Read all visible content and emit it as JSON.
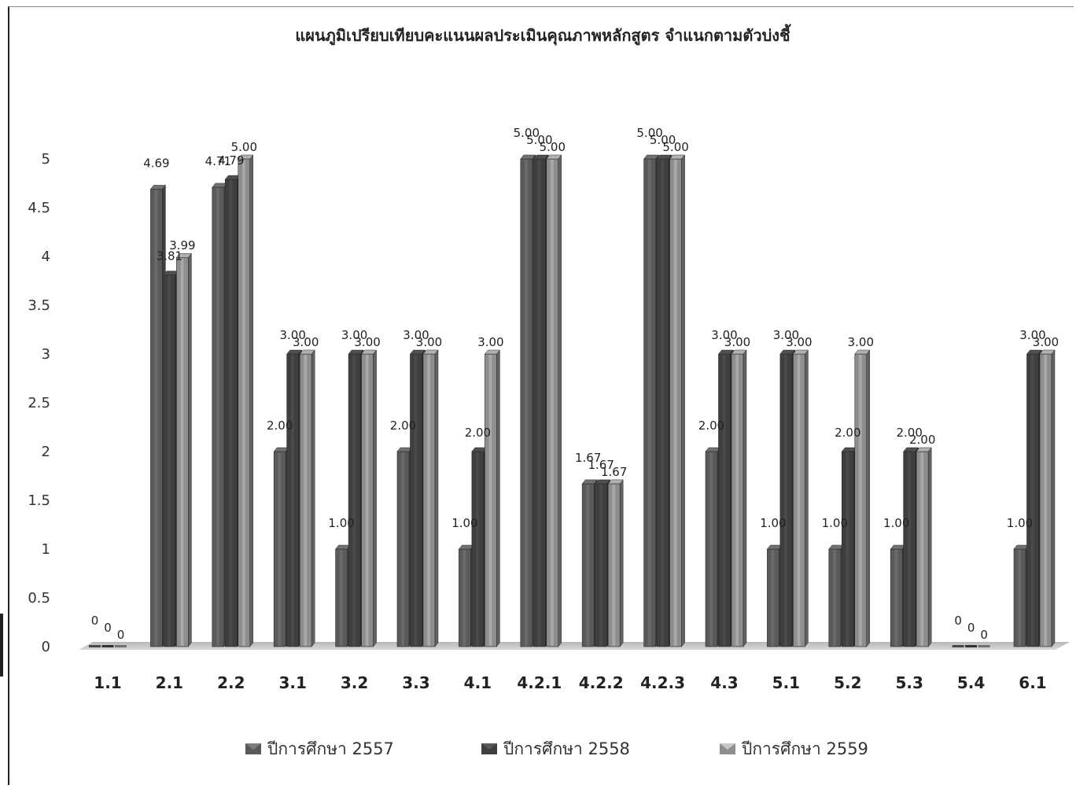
{
  "chart_data": {
    "type": "bar",
    "title": "แผนภูมิเปรียบเทียบคะแนนผลประเมินคุณภาพหลักสูตร  จำแนกตามตัวบ่งชี้",
    "xlabel": "",
    "ylabel": "",
    "ylim": [
      0,
      5
    ],
    "yticks": [
      "0",
      "0.5",
      "1",
      "1.5",
      "2",
      "2.5",
      "3",
      "3.5",
      "4",
      "4.5",
      "5"
    ],
    "grid": false,
    "legend_position": "bottom",
    "categories": [
      "1.1",
      "2.1",
      "2.2",
      "3.1",
      "3.2",
      "3.3",
      "4.1",
      "4.2.1",
      "4.2.2",
      "4.2.3",
      "4.3",
      "5.1",
      "5.2",
      "5.3",
      "5.4",
      "6.1"
    ],
    "series": [
      {
        "name": "ปีการศึกษา 2557",
        "color": "#5a5a5a",
        "values": [
          0,
          4.69,
          4.71,
          2.0,
          1.0,
          2.0,
          1.0,
          5.0,
          1.67,
          5.0,
          2.0,
          1.0,
          1.0,
          1.0,
          0,
          1.0
        ],
        "labels": [
          "0",
          "4.69",
          "4.71",
          "2.00",
          "1.00",
          "2.00",
          "1.00",
          "5.00",
          "1.67",
          "5.00",
          "2.00",
          "1.00",
          "1.00",
          "1.00",
          "0",
          "1.00"
        ]
      },
      {
        "name": "ปีการศึกษา 2558",
        "color": "#3f3f3f",
        "values": [
          0,
          3.81,
          4.79,
          3.0,
          3.0,
          3.0,
          2.0,
          5.0,
          1.67,
          5.0,
          3.0,
          3.0,
          2.0,
          2.0,
          0,
          3.0
        ],
        "labels": [
          "0",
          "3.81",
          "4.79",
          "3.00",
          "3.00",
          "3.00",
          "2.00",
          "5.00",
          "1.67",
          "5.00",
          "3.00",
          "3.00",
          "2.00",
          "2.00",
          "0",
          "3.00"
        ]
      },
      {
        "name": "ปีการศึกษา 2559",
        "color": "#8e8e8e",
        "values": [
          0,
          3.99,
          5.0,
          3.0,
          3.0,
          3.0,
          3.0,
          5.0,
          1.67,
          5.0,
          3.0,
          3.0,
          3.0,
          2.0,
          0,
          3.0
        ],
        "labels": [
          "0",
          "3.99",
          "5.00",
          "3.00",
          "3.00",
          "3.00",
          "3.00",
          "5.00",
          "1.67",
          "5.00",
          "3.00",
          "3.00",
          "3.00",
          "2.00",
          "0",
          "3.00"
        ]
      }
    ]
  }
}
